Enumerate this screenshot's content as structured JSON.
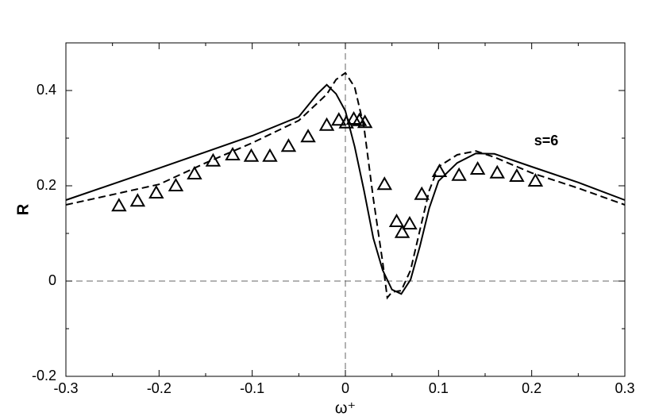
{
  "chart_data": {
    "type": "line",
    "xlabel": "ω⁺",
    "ylabel": "R",
    "annotation": "s=6",
    "xlim": [
      -0.3,
      0.3
    ],
    "ylim": [
      -0.2,
      0.5
    ],
    "xticks": [
      -0.3,
      -0.2,
      -0.1,
      0,
      0.1,
      0.2,
      0.3
    ],
    "yticks": [
      -0.2,
      0,
      0.2,
      0.4
    ],
    "zero_lines": true,
    "series": [
      {
        "style": "solid",
        "color": "#000000",
        "x": [
          -0.3,
          -0.2,
          -0.1,
          -0.05,
          -0.03,
          -0.02,
          -0.01,
          0,
          0.01,
          0.02,
          0.03,
          0.04,
          0.05,
          0.06,
          0.07,
          0.08,
          0.09,
          0.1,
          0.12,
          0.14,
          0.16,
          0.2,
          0.25,
          0.3
        ],
        "values": [
          0.17,
          0.237,
          0.305,
          0.345,
          0.393,
          0.412,
          0.393,
          0.357,
          0.282,
          0.19,
          0.09,
          0.023,
          -0.018,
          -0.027,
          0.003,
          0.073,
          0.153,
          0.21,
          0.248,
          0.268,
          0.267,
          0.24,
          0.207,
          0.17
        ]
      },
      {
        "style": "dashed",
        "color": "#000000",
        "x": [
          -0.3,
          -0.2,
          -0.15,
          -0.1,
          -0.05,
          -0.02,
          -0.01,
          0,
          0.01,
          0.02,
          0.03,
          0.04,
          0.045,
          0.05,
          0.06,
          0.07,
          0.08,
          0.09,
          0.1,
          0.12,
          0.14,
          0.16,
          0.2,
          0.25,
          0.3
        ],
        "values": [
          0.16,
          0.203,
          0.248,
          0.29,
          0.337,
          0.392,
          0.423,
          0.437,
          0.407,
          0.323,
          0.173,
          0.04,
          -0.035,
          -0.023,
          -0.02,
          0.023,
          0.107,
          0.19,
          0.24,
          0.265,
          0.273,
          0.26,
          0.227,
          0.195,
          0.16
        ]
      },
      {
        "style": "triangle",
        "color": "#000000",
        "x": [
          -0.243,
          -0.223,
          -0.203,
          -0.182,
          -0.162,
          -0.142,
          -0.121,
          -0.101,
          -0.081,
          -0.061,
          -0.04,
          -0.02,
          -0.007,
          0.001,
          0.009,
          0.015,
          0.021,
          0.042,
          0.055,
          0.061,
          0.069,
          0.082,
          0.101,
          0.122,
          0.142,
          0.163,
          0.184,
          0.204
        ],
        "values": [
          0.158,
          0.168,
          0.185,
          0.2,
          0.225,
          0.252,
          0.265,
          0.262,
          0.262,
          0.283,
          0.303,
          0.327,
          0.338,
          0.332,
          0.34,
          0.337,
          0.333,
          0.203,
          0.125,
          0.102,
          0.12,
          0.182,
          0.23,
          0.222,
          0.235,
          0.227,
          0.22,
          0.21
        ]
      }
    ]
  }
}
